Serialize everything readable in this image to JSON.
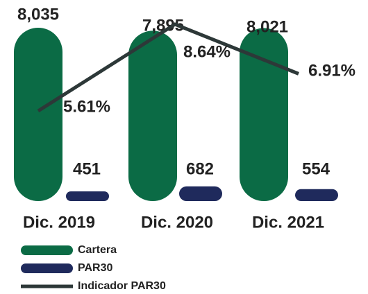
{
  "chart_data": {
    "type": "bar",
    "categories": [
      "Dic. 2019",
      "Dic. 2020",
      "Dic. 2021"
    ],
    "series": [
      {
        "name": "Cartera",
        "color": "#0b6b45",
        "values": [
          8035,
          7895,
          8021
        ],
        "value_labels": [
          "8,035",
          "7,895",
          "8,021"
        ]
      },
      {
        "name": "PAR30",
        "color": "#1f2a5c",
        "values": [
          451,
          682,
          554
        ]
      },
      {
        "name": "Indicador PAR30",
        "type": "line",
        "axis": "y2",
        "color": "#2d3838",
        "values": [
          5.61,
          8.64,
          6.91
        ],
        "value_labels": [
          "5.61%",
          "8.64%",
          "6.91%"
        ]
      }
    ]
  }
}
